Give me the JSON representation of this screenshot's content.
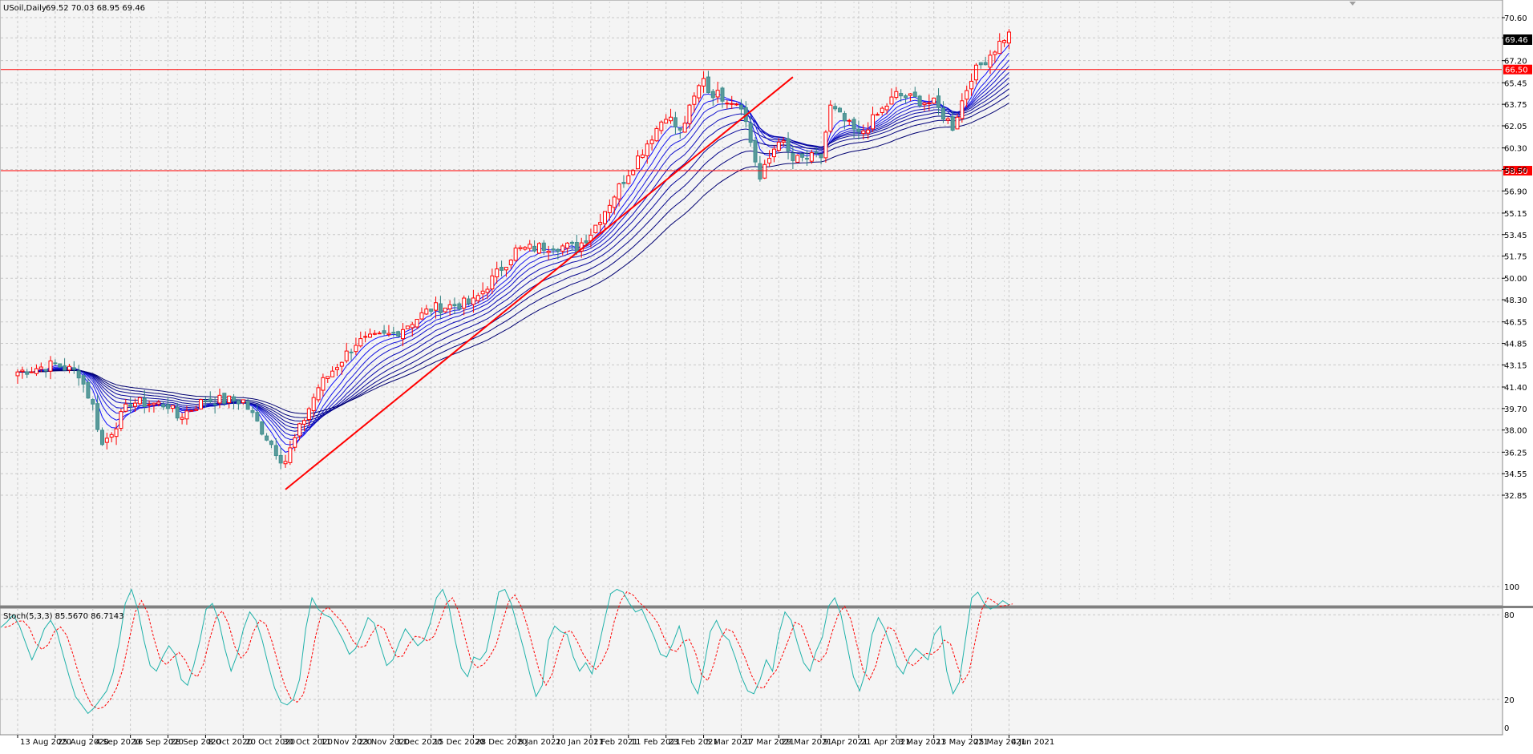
{
  "header": {
    "symbol": "USoil,Daily",
    "ohlc": "69.52 70.03 68.95 69.46"
  },
  "chart_data": [
    {
      "type": "candlestick",
      "symbol": "USoil",
      "timeframe": "Daily",
      "current_price": "69.46",
      "ylim": [
        32.85,
        71.5
      ],
      "y_ticks": [
        "70.60",
        "69.00",
        "67.20",
        "65.45",
        "63.75",
        "62.05",
        "60.30",
        "58.60",
        "56.90",
        "55.15",
        "53.45",
        "51.75",
        "50.00",
        "48.30",
        "46.55",
        "44.85",
        "43.15",
        "41.40",
        "39.70",
        "38.00",
        "36.25",
        "34.55",
        "32.85"
      ],
      "x_ticks": [
        "13 Aug 2020",
        "25 Aug 2020",
        "4 Sep 2020",
        "16 Sep 2020",
        "28 Sep 2020",
        "8 Oct 2020",
        "20 Oct 2020",
        "30 Oct 2020",
        "11 Nov 2020",
        "23 Nov 2020",
        "3 Dec 2020",
        "15 Dec 2020",
        "28 Dec 2020",
        "8 Jan 2021",
        "20 Jan 2021",
        "1 Feb 2021",
        "11 Feb 2021",
        "23 Feb 2021",
        "5 Mar 2021",
        "17 Mar 2021",
        "29 Mar 2021",
        "9 Apr 2021",
        "21 Apr 2021",
        "3 May 2021",
        "13 May 2021",
        "25 May 2021",
        "4 Jun 2021"
      ],
      "horizontal_levels": [
        {
          "label": "66.50",
          "value": 66.5,
          "color": "#ff0000"
        },
        {
          "label": "58.50",
          "value": 58.5,
          "color": "#ff0000"
        }
      ],
      "trendline": {
        "from": {
          "date": "2 Nov 2020",
          "price": 33.3
        },
        "to": {
          "date": "1 Apr 2021",
          "price": 65.9
        },
        "color": "#ff0000"
      },
      "close_path": [
        [
          "13 Aug 2020",
          42.6
        ],
        [
          "25 Aug 2020",
          43.2
        ],
        [
          "1 Sep 2020",
          42.5
        ],
        [
          "4 Sep 2020",
          39.9
        ],
        [
          "8 Sep 2020",
          36.8
        ],
        [
          "16 Sep 2020",
          40.2
        ],
        [
          "28 Sep 2020",
          40.0
        ],
        [
          "30 Sep 2020",
          39.0
        ],
        [
          "8 Oct 2020",
          40.4
        ],
        [
          "20 Oct 2020",
          40.3
        ],
        [
          "26 Oct 2020",
          38.0
        ],
        [
          "30 Oct 2020",
          35.8
        ],
        [
          "2 Nov 2020",
          35.6
        ],
        [
          "11 Nov 2020",
          41.4
        ],
        [
          "23 Nov 2020",
          44.9
        ],
        [
          "3 Dec 2020",
          45.6
        ],
        [
          "15 Dec 2020",
          47.6
        ],
        [
          "28 Dec 2020",
          48.1
        ],
        [
          "8 Jan 2021",
          52.2
        ],
        [
          "20 Jan 2021",
          52.6
        ],
        [
          "27 Jan 2021",
          52.4
        ],
        [
          "1 Feb 2021",
          53.6
        ],
        [
          "11 Feb 2021",
          58.4
        ],
        [
          "23 Feb 2021",
          63.0
        ],
        [
          "26 Feb 2021",
          61.5
        ],
        [
          "5 Mar 2021",
          66.0
        ],
        [
          "8 Mar 2021",
          64.8
        ],
        [
          "17 Mar 2021",
          63.8
        ],
        [
          "23 Mar 2021",
          57.8
        ],
        [
          "29 Mar 2021",
          61.1
        ],
        [
          "1 Apr 2021",
          59.3
        ],
        [
          "9 Apr 2021",
          59.6
        ],
        [
          "13 Apr 2021",
          63.5
        ],
        [
          "21 Apr 2021",
          61.3
        ],
        [
          "3 May 2021",
          64.5
        ],
        [
          "13 May 2021",
          63.8
        ],
        [
          "19 May 2021",
          62.0
        ],
        [
          "25 May 2021",
          66.0
        ],
        [
          "4 Jun 2021",
          69.46
        ]
      ],
      "ma_ribbon": {
        "color": "#0000cd",
        "count": 10
      }
    },
    {
      "type": "line",
      "title": "Stoch(5,3,3) 85.5670 86.7143",
      "ylim": [
        0,
        100
      ],
      "y_ticks": [
        "100",
        "80",
        "20",
        "0"
      ],
      "series": [
        {
          "name": "main",
          "color": "#20b2aa",
          "style": "solid"
        },
        {
          "name": "signal",
          "color": "#ff0000",
          "style": "dashed"
        }
      ],
      "main_values": [
        71,
        75,
        80,
        72,
        60,
        48,
        58,
        70,
        76,
        68,
        52,
        36,
        22,
        16,
        10,
        14,
        20,
        26,
        38,
        60,
        88,
        98,
        84,
        62,
        44,
        40,
        50,
        58,
        52,
        34,
        30,
        44,
        62,
        84,
        88,
        76,
        56,
        40,
        52,
        70,
        82,
        76,
        62,
        44,
        28,
        18,
        16,
        20,
        34,
        70,
        92,
        84,
        80,
        78,
        70,
        62,
        52,
        56,
        66,
        78,
        74,
        58,
        44,
        48,
        60,
        70,
        64,
        58,
        62,
        74,
        92,
        98,
        86,
        62,
        42,
        36,
        50,
        48,
        54,
        74,
        96,
        98,
        88,
        72,
        56,
        38,
        22,
        30,
        62,
        72,
        68,
        66,
        50,
        40,
        46,
        38,
        56,
        76,
        95,
        98,
        96,
        88,
        82,
        84,
        74,
        64,
        52,
        50,
        60,
        72,
        56,
        32,
        24,
        44,
        68,
        76,
        66,
        62,
        50,
        36,
        26,
        24,
        34,
        48,
        40,
        66,
        82,
        76,
        60,
        46,
        40,
        54,
        64,
        86,
        92,
        80,
        58,
        36,
        26,
        40,
        66,
        78,
        70,
        58,
        44,
        38,
        50,
        56,
        52,
        48,
        66,
        72,
        40,
        24,
        32,
        62,
        92,
        96,
        88,
        84,
        86,
        90,
        87
      ]
    }
  ]
}
